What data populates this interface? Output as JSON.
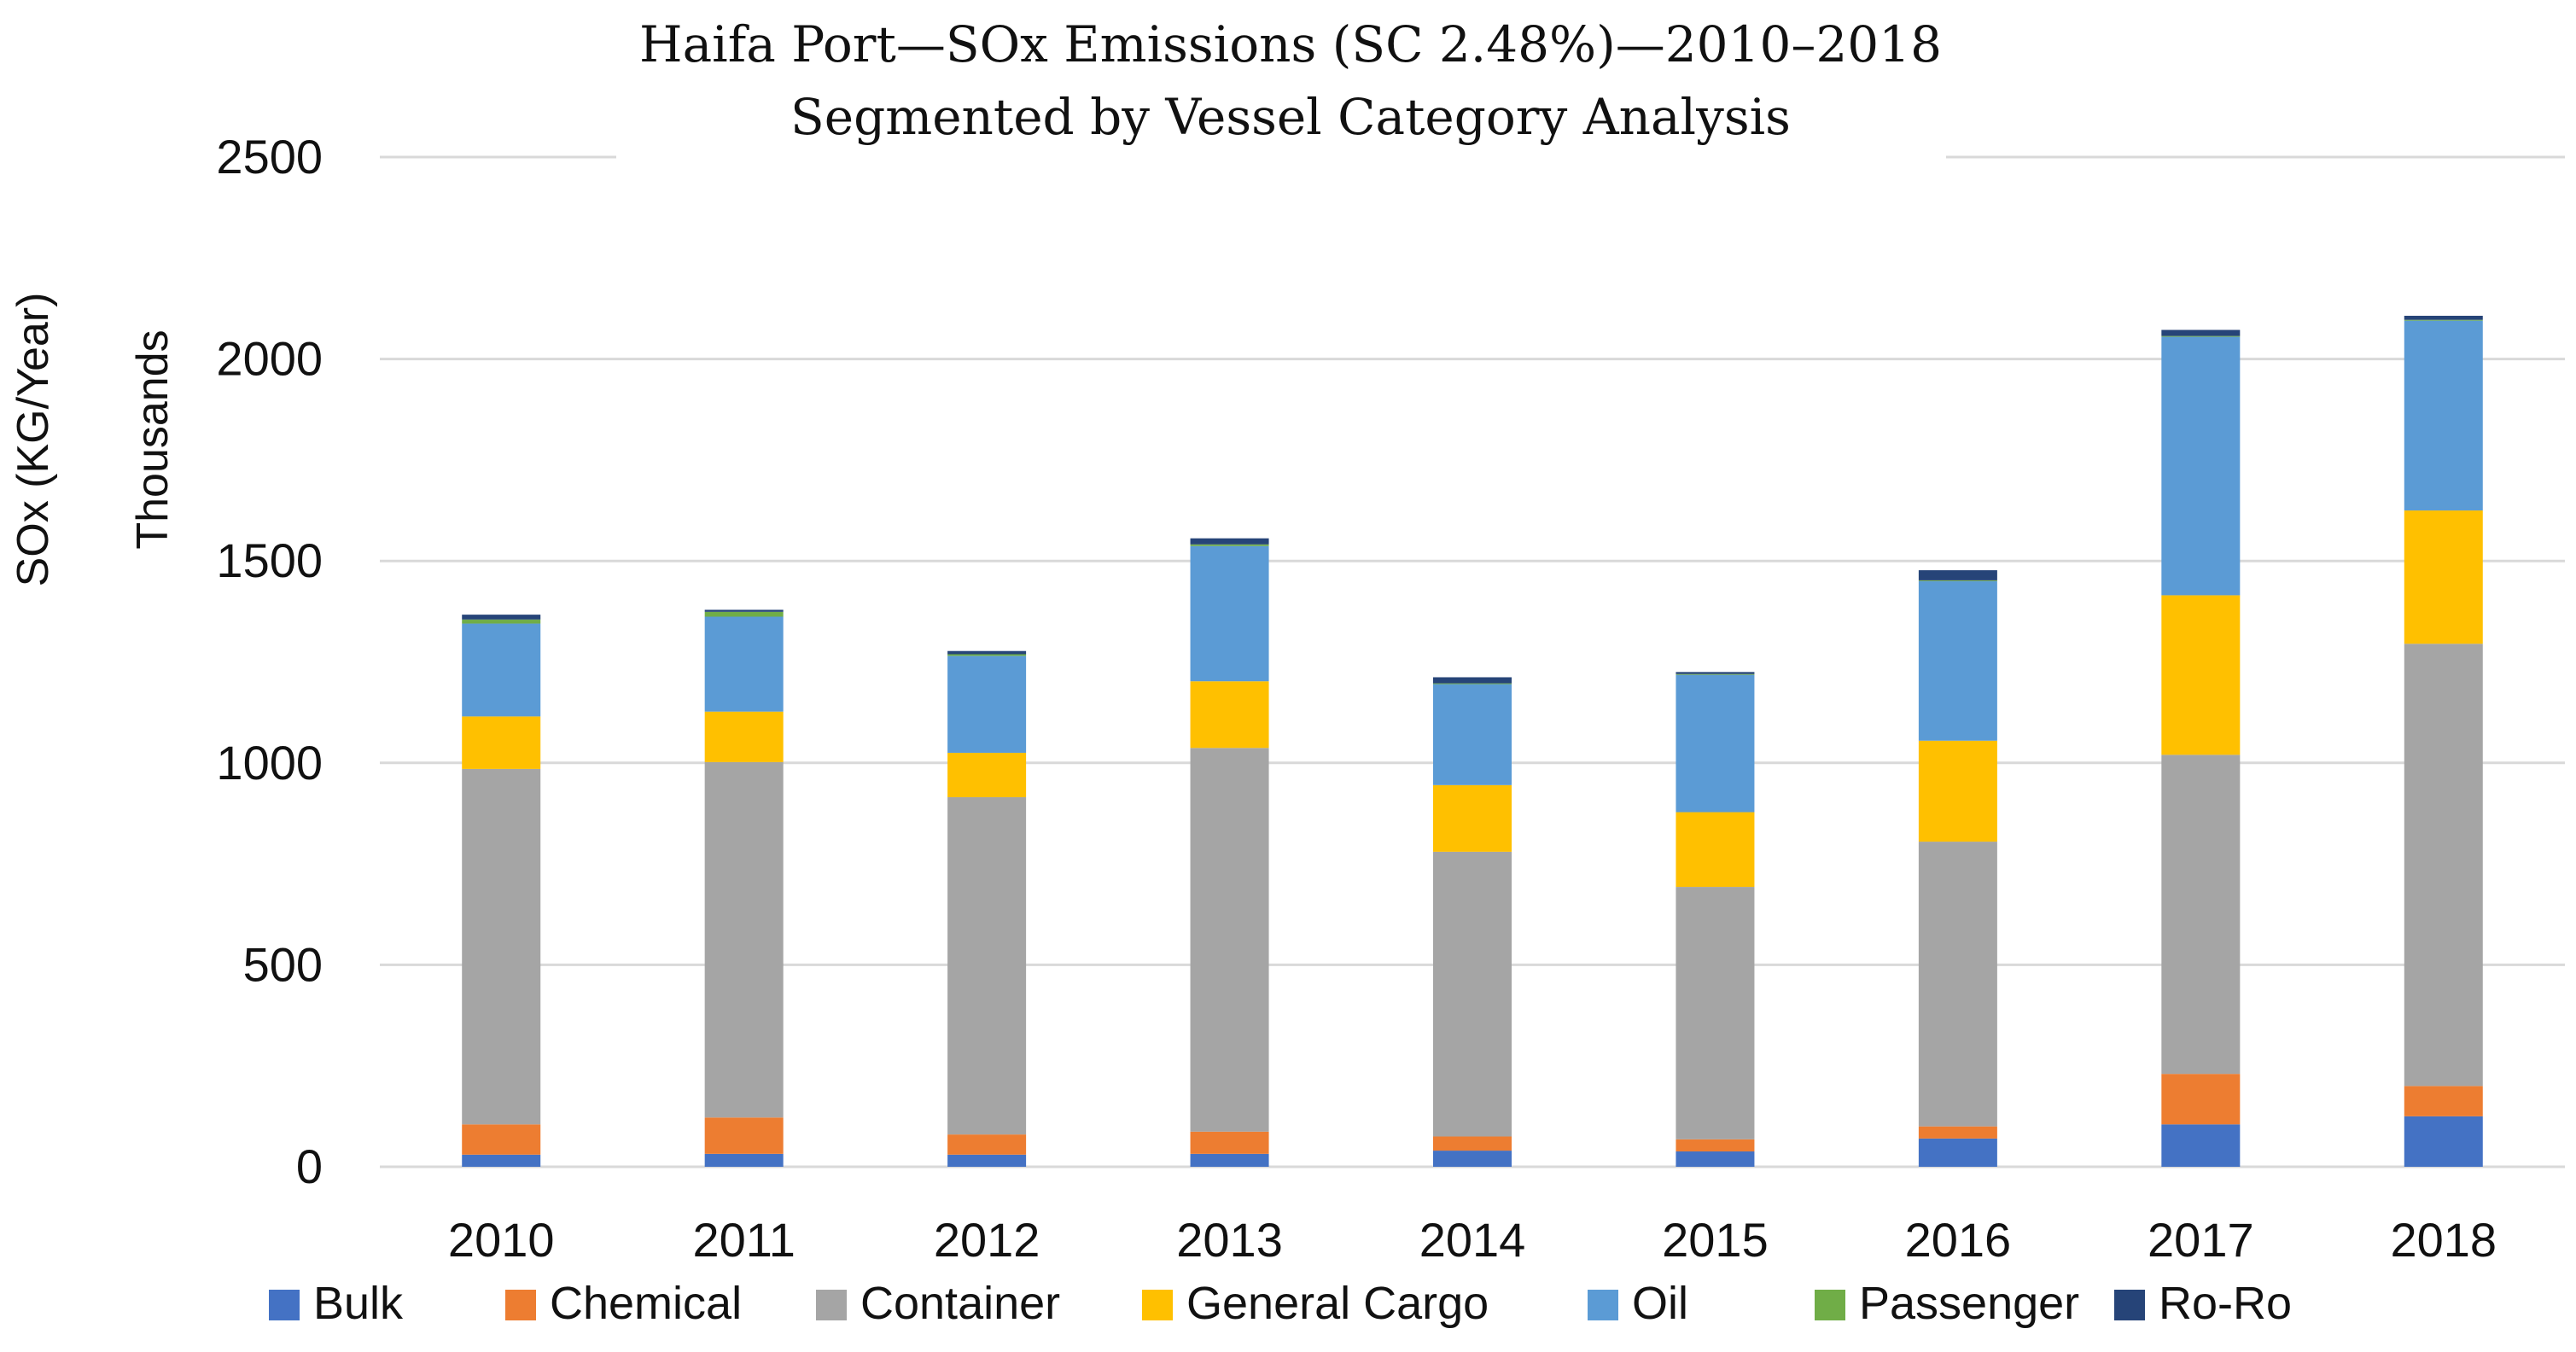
{
  "chart_data": {
    "type": "bar",
    "stacked": true,
    "title": "Haifa Port—SOx Emissions (SC 2.48%)—2010–2018",
    "subtitle": "Segmented by Vessel Category Analysis",
    "ylabel": "SOx (KG/Year)",
    "yunit": "Thousands",
    "ylim": [
      0,
      2500
    ],
    "yticks": [
      "0",
      "500",
      "1000",
      "1500",
      "2000",
      "2500"
    ],
    "grid": true,
    "legend_position": "bottom",
    "categories": [
      "2010",
      "2011",
      "2012",
      "2013",
      "2014",
      "2015",
      "2016",
      "2017",
      "2018"
    ],
    "series": [
      {
        "name": "Bulk",
        "color": "#4472C4",
        "values": [
          30,
          32,
          30,
          32,
          40,
          38,
          70,
          105,
          125
        ]
      },
      {
        "name": "Chemical",
        "color": "#ED7D31",
        "values": [
          75,
          90,
          50,
          55,
          35,
          30,
          30,
          125,
          75
        ]
      },
      {
        "name": "Container",
        "color": "#A5A5A5",
        "values": [
          880,
          880,
          835,
          950,
          705,
          625,
          705,
          790,
          1095
        ]
      },
      {
        "name": "General Cargo",
        "color": "#FFC000",
        "values": [
          130,
          125,
          110,
          165,
          165,
          185,
          250,
          395,
          330
        ]
      },
      {
        "name": "Oil",
        "color": "#5B9BD5",
        "values": [
          230,
          235,
          240,
          335,
          250,
          340,
          395,
          640,
          470
        ]
      },
      {
        "name": "Passenger",
        "color": "#70AD47",
        "values": [
          10,
          12,
          4,
          4,
          2,
          2,
          2,
          2,
          2
        ]
      },
      {
        "name": "Ro-Ro",
        "color": "#264478",
        "values": [
          12,
          5,
          8,
          15,
          15,
          5,
          25,
          15,
          10
        ]
      }
    ]
  }
}
